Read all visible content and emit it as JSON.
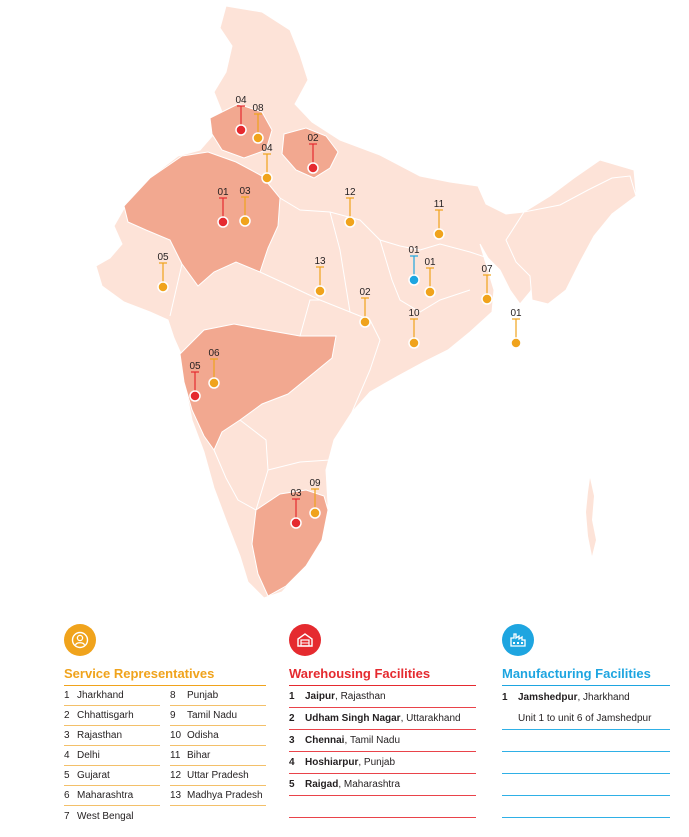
{
  "colors": {
    "service": "#f0a31c",
    "warehouse": "#e52a2f",
    "manufacturing": "#1ea5e0",
    "land": "#fde3d8",
    "highlight": "#f2a890"
  },
  "map": {
    "highlighted_states": [
      "Rajasthan",
      "Uttarakhand",
      "Punjab",
      "Maharashtra",
      "Tamil Nadu"
    ],
    "markers": [
      {
        "label": "04",
        "type": "warehouse",
        "state": "Punjab"
      },
      {
        "label": "08",
        "type": "service",
        "state": "Punjab"
      },
      {
        "label": "02",
        "type": "warehouse",
        "state": "Uttarakhand"
      },
      {
        "label": "04",
        "type": "service",
        "state": "Delhi"
      },
      {
        "label": "01",
        "type": "warehouse",
        "state": "Rajasthan"
      },
      {
        "label": "03",
        "type": "service",
        "state": "Rajasthan"
      },
      {
        "label": "12",
        "type": "service",
        "state": "Uttar Pradesh"
      },
      {
        "label": "11",
        "type": "service",
        "state": "Bihar"
      },
      {
        "label": "05",
        "type": "service",
        "state": "Gujarat"
      },
      {
        "label": "01",
        "type": "manufacturing",
        "state": "Jharkhand"
      },
      {
        "label": "01",
        "type": "service",
        "state": "Jharkhand"
      },
      {
        "label": "13",
        "type": "service",
        "state": "Madhya Pradesh"
      },
      {
        "label": "07",
        "type": "service",
        "state": "West Bengal"
      },
      {
        "label": "02",
        "type": "service",
        "state": "Chhattisgarh"
      },
      {
        "label": "10",
        "type": "service",
        "state": "Odisha"
      },
      {
        "label": "01",
        "type": "service",
        "state": "North East"
      },
      {
        "label": "06",
        "type": "service",
        "state": "Maharashtra"
      },
      {
        "label": "05",
        "type": "warehouse",
        "state": "Maharashtra"
      },
      {
        "label": "09",
        "type": "service",
        "state": "Tamil Nadu"
      },
      {
        "label": "03",
        "type": "warehouse",
        "state": "Tamil Nadu"
      }
    ]
  },
  "legend": {
    "service": {
      "icon": "service-representative-icon",
      "title": "Service Representatives",
      "col1": [
        {
          "num": "1",
          "name": "Jharkhand"
        },
        {
          "num": "2",
          "name": "Chhattisgarh"
        },
        {
          "num": "3",
          "name": "Rajasthan"
        },
        {
          "num": "4",
          "name": "Delhi"
        },
        {
          "num": "5",
          "name": "Gujarat"
        },
        {
          "num": "6",
          "name": "Maharashtra"
        },
        {
          "num": "7",
          "name": "West Bengal"
        }
      ],
      "col2": [
        {
          "num": "8",
          "name": "Punjab"
        },
        {
          "num": "9",
          "name": "Tamil Nadu"
        },
        {
          "num": "10",
          "name": "Odisha"
        },
        {
          "num": "11",
          "name": "Bihar"
        },
        {
          "num": "12",
          "name": "Uttar Pradesh"
        },
        {
          "num": "13",
          "name": "Madhya Pradesh"
        }
      ]
    },
    "warehouse": {
      "icon": "warehouse-icon",
      "title": "Warehousing Facilities",
      "items": [
        {
          "num": "1",
          "city": "Jaipur",
          "state": "Rajasthan"
        },
        {
          "num": "2",
          "city": "Udham Singh Nagar",
          "state": "Uttarakhand"
        },
        {
          "num": "3",
          "city": "Chennai",
          "state": "Tamil Nadu"
        },
        {
          "num": "4",
          "city": "Hoshiarpur",
          "state": "Punjab"
        },
        {
          "num": "5",
          "city": "Raigad",
          "state": "Maharashtra"
        }
      ]
    },
    "manufacturing": {
      "icon": "factory-icon",
      "title": "Manufacturing Facilities",
      "items": [
        {
          "num": "1",
          "city": "Jamshedpur",
          "state": "Jharkhand",
          "note": "Unit 1 to unit 6 of Jamshedpur"
        }
      ]
    }
  }
}
